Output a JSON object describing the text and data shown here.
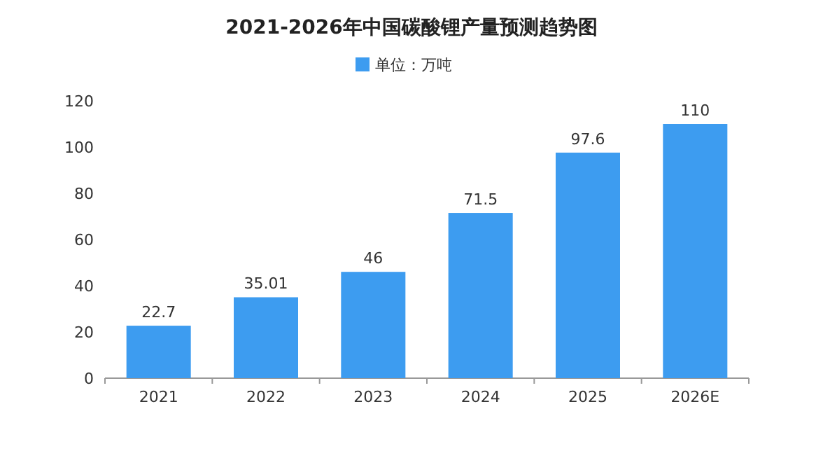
{
  "chart_data": {
    "type": "bar",
    "title": "2021-2026年中国碳酸锂产量预测趋势图",
    "categories": [
      "2021",
      "2022",
      "2023",
      "2024",
      "2025",
      "2026E"
    ],
    "series": [
      {
        "name": "单位：万吨",
        "color": "#3d9cf0",
        "values": [
          22.7,
          35.01,
          46,
          71.5,
          97.6,
          110
        ]
      }
    ],
    "ylim": [
      0,
      120
    ],
    "yticks": [
      0,
      20,
      40,
      60,
      80,
      100,
      120
    ],
    "grid": false,
    "legend": "top",
    "data_labels": true
  }
}
